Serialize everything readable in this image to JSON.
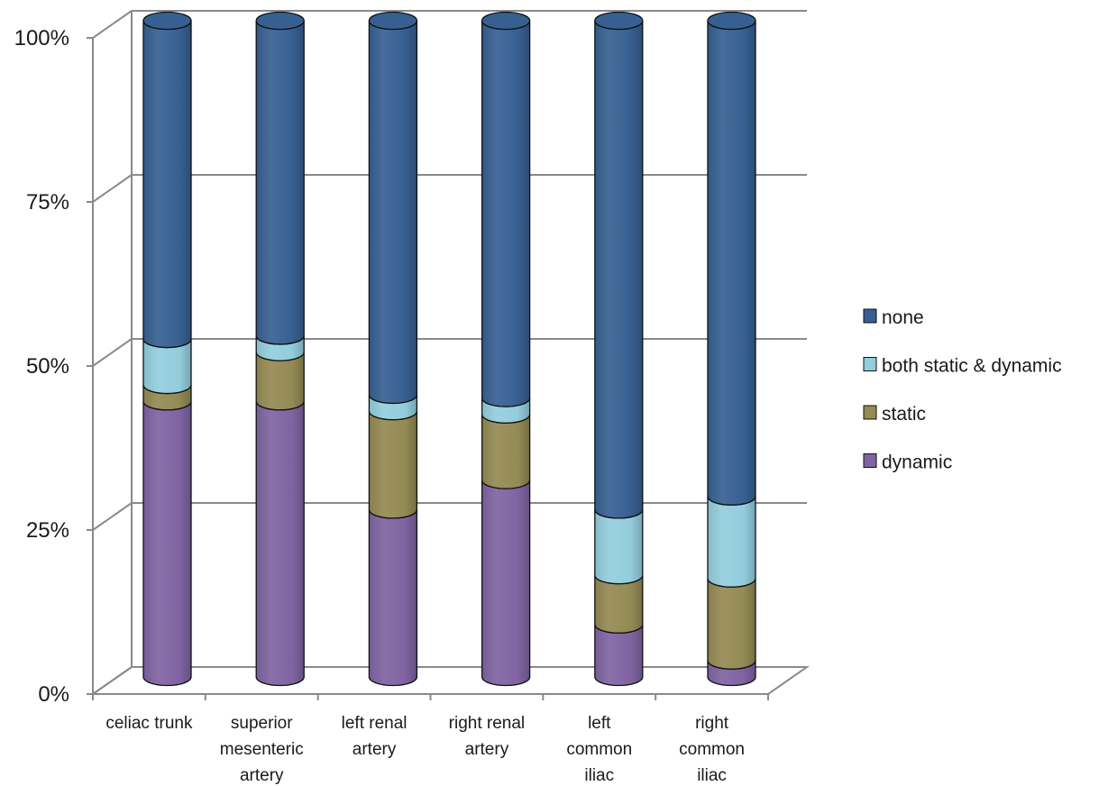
{
  "chart_data": {
    "type": "bar",
    "stacked": "percent",
    "style": "3d-cylinder",
    "title": "",
    "xlabel": "",
    "ylabel": "",
    "ylim": [
      0,
      100
    ],
    "yticks": [
      "0%",
      "25%",
      "50%",
      "75%",
      "100%"
    ],
    "grid": true,
    "legend_position": "right",
    "categories": [
      [
        "celiac trunk"
      ],
      [
        "superior",
        "mesenteric",
        "artery"
      ],
      [
        "left renal",
        "artery"
      ],
      [
        "right renal",
        "artery"
      ],
      [
        "left",
        "common",
        "iliac"
      ],
      [
        "right",
        "common",
        "iliac"
      ]
    ],
    "series": [
      {
        "name": "dynamic",
        "color": "#8064a2",
        "values": [
          42,
          42,
          25.5,
          30,
          8,
          2.5
        ]
      },
      {
        "name": "static",
        "color": "#948a54",
        "values": [
          2.5,
          7.5,
          15,
          10,
          7.5,
          12.5
        ]
      },
      {
        "name": "both static & dynamic",
        "color": "#93cddd",
        "values": [
          7,
          2.5,
          2.5,
          2.5,
          10,
          12.5
        ]
      },
      {
        "name": "none",
        "color": "#376092",
        "values": [
          48.5,
          48,
          57,
          57.5,
          74.5,
          72.5
        ]
      }
    ],
    "legend_order": [
      "none",
      "both static & dynamic",
      "static",
      "dynamic"
    ]
  }
}
